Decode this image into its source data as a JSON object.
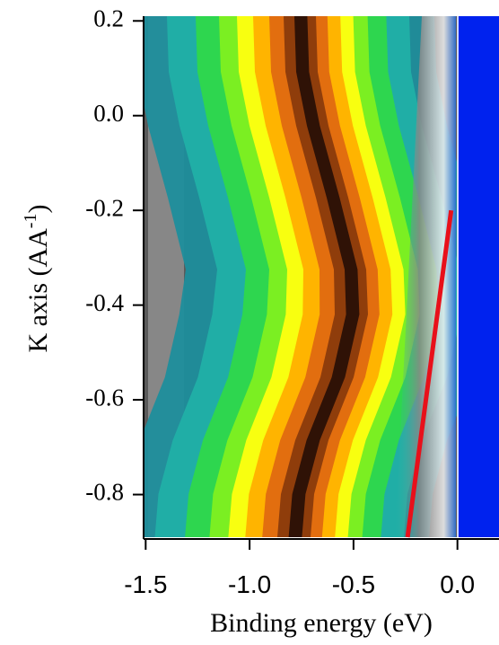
{
  "chart_data": {
    "type": "line",
    "xlabel": "Binding energy (eV)",
    "ylabel": {
      "text": "K axis (AA",
      "superscript": "-1",
      "suffix": ")"
    },
    "xlim": [
      -1.51,
      0.2
    ],
    "ylim": [
      -0.89,
      0.21
    ],
    "xticks": [
      {
        "value": -1.5,
        "label": "-1.5"
      },
      {
        "value": -1.0,
        "label": "-1.0"
      },
      {
        "value": -0.5,
        "label": "-0.5"
      },
      {
        "value": 0.0,
        "label": "0.0"
      }
    ],
    "yticks": [
      0.2,
      {
        "value": 0.0,
        "label": "0.0"
      },
      -0.2,
      -0.4,
      -0.6,
      -0.8
    ],
    "series": [
      {
        "color": "#e8101a",
        "x": [
          -0.03,
          -0.24
        ],
        "values": [
          -0.2,
          -0.89
        ]
      }
    ]
  }
}
